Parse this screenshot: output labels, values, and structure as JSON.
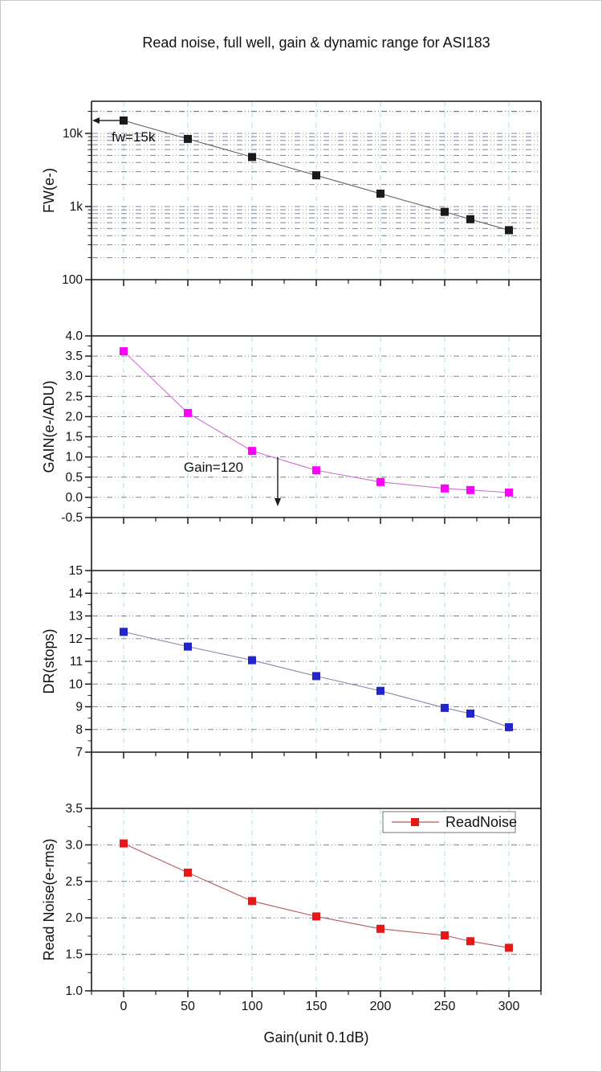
{
  "title": "Read noise, full well, gain & dynamic range for ASI183",
  "x_axis": {
    "label": "Gain(unit 0.1dB)",
    "xlim": [
      -25,
      325
    ],
    "major_ticks": [
      0,
      50,
      100,
      150,
      200,
      250,
      300
    ],
    "minor_step": 25
  },
  "colors": {
    "frame": "#1a1a1a",
    "h_grid": "#6a6a8e",
    "v_grid": "#b5e8e8",
    "text": "#111111",
    "legend_border": "#8a8a8a"
  },
  "chart_data": [
    {
      "type": "line",
      "name": "FW",
      "ylabel": "FW(e-)",
      "yscale": "log",
      "ylim": [
        100,
        27500
      ],
      "yticks": [
        {
          "value": 10000,
          "label": "10k"
        },
        {
          "value": 1000,
          "label": "1k"
        },
        {
          "value": 100,
          "label": "100"
        }
      ],
      "x": [
        0,
        50,
        100,
        150,
        200,
        250,
        270,
        300
      ],
      "values": [
        15000,
        8400,
        4750,
        2670,
        1500,
        845,
        670,
        475
      ],
      "marker_color": "#1a1a1a",
      "line_color": "#666666",
      "annotation": {
        "text": "fw=15k",
        "style": "arrow-left"
      }
    },
    {
      "type": "line",
      "name": "GAIN",
      "ylabel": "GAIN(e-/ADU)",
      "yscale": "linear",
      "ylim": [
        -0.5,
        4.0
      ],
      "ytick_step": 0.5,
      "x": [
        0,
        50,
        100,
        150,
        200,
        250,
        270,
        300
      ],
      "values": [
        3.62,
        2.09,
        1.15,
        0.67,
        0.38,
        0.22,
        0.18,
        0.12
      ],
      "marker_color": "#ff00ff",
      "line_color": "#cf6fcf",
      "annotation": {
        "text": "Gain=120",
        "style": "arrow-down",
        "at_x": 120
      }
    },
    {
      "type": "line",
      "name": "DR",
      "ylabel": "DR(stops)",
      "yscale": "linear",
      "ylim": [
        7,
        15
      ],
      "ytick_step": 1,
      "x": [
        0,
        50,
        100,
        150,
        200,
        250,
        270,
        300
      ],
      "values": [
        12.3,
        11.65,
        11.05,
        10.35,
        9.7,
        8.95,
        8.7,
        8.1
      ],
      "marker_color": "#2424cc",
      "line_color": "#8585a8"
    },
    {
      "type": "line",
      "name": "ReadNoise",
      "ylabel": "Read Noise(e-rms)",
      "yscale": "linear",
      "ylim": [
        1.0,
        3.5
      ],
      "ytick_step": 0.5,
      "x": [
        0,
        50,
        100,
        150,
        200,
        250,
        270,
        300
      ],
      "values": [
        3.02,
        2.62,
        2.23,
        2.02,
        1.85,
        1.76,
        1.68,
        1.59
      ],
      "marker_color": "#e81717",
      "line_color": "#b25a5a",
      "legend_label": "ReadNoise"
    }
  ]
}
